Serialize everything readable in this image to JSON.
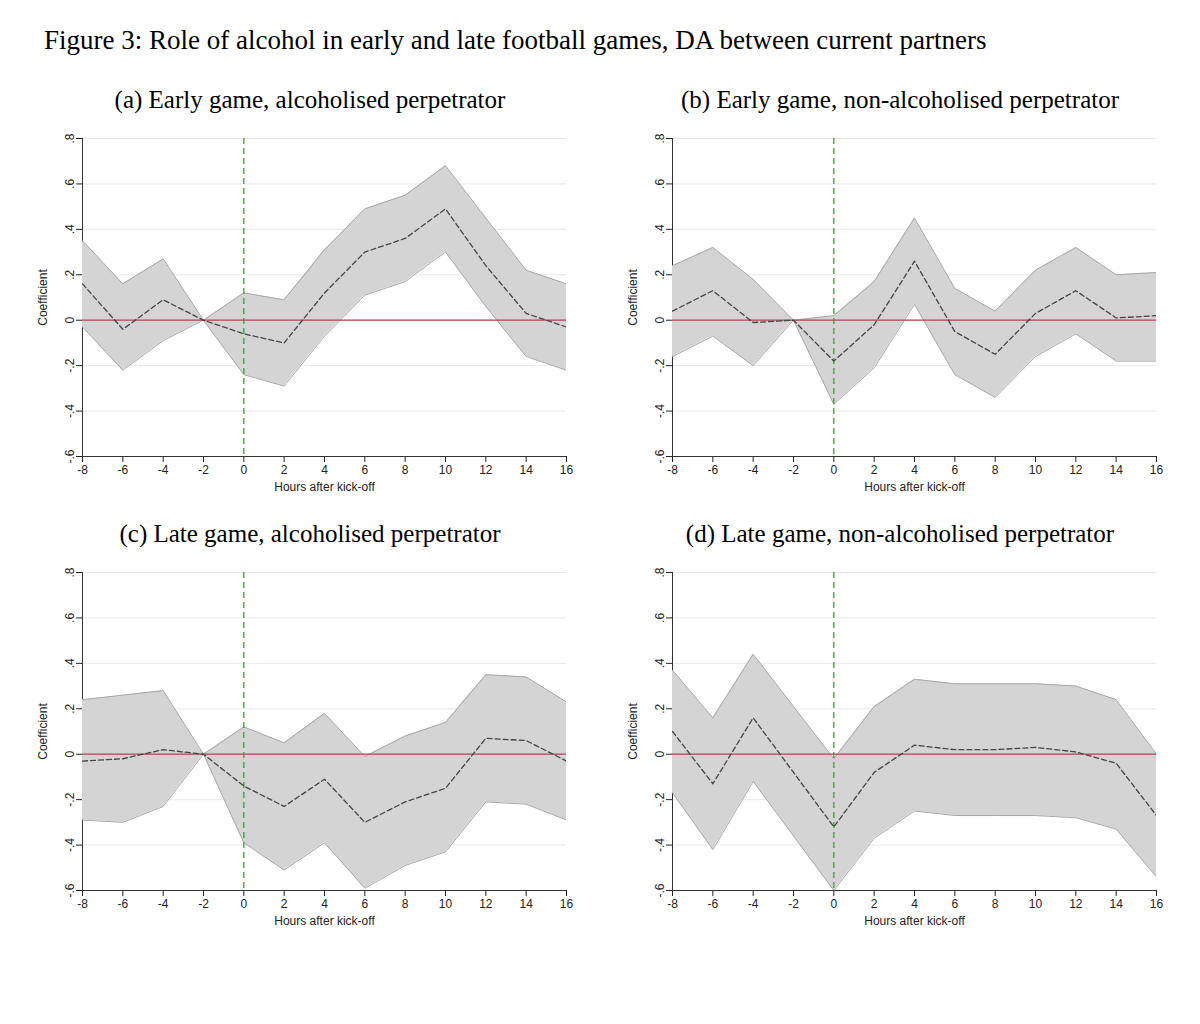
{
  "title": "Figure 3: Role of alcohol in early and late football games, DA between current partners",
  "chart_data": [
    {
      "type": "line",
      "title": "(a) Early game, alcoholised perpetrator",
      "x_label": "Hours after kick-off",
      "y_label": "Coefficient",
      "x": [
        -8,
        -6,
        -4,
        -2,
        0,
        2,
        4,
        6,
        8,
        10,
        12,
        14,
        16
      ],
      "series": [
        {
          "color": "#444444",
          "line_style": "dashed",
          "values": [
            0.16,
            -0.04,
            0.09,
            0,
            -0.06,
            -0.1,
            0.12,
            0.3,
            0.36,
            0.49,
            0.24,
            0.03,
            -0.03
          ],
          "ci_lower": [
            -0.03,
            -0.22,
            -0.09,
            0,
            -0.24,
            -0.29,
            -0.07,
            0.11,
            0.17,
            0.3,
            0.06,
            -0.16,
            -0.22
          ],
          "ci_upper": [
            0.35,
            0.16,
            0.27,
            0,
            0.12,
            0.09,
            0.31,
            0.49,
            0.55,
            0.68,
            0.45,
            0.22,
            0.16
          ]
        }
      ],
      "reference_lines": {
        "x": 0,
        "y": 0
      },
      "xlim": [
        -8,
        16
      ],
      "xticks": [
        -8,
        -6,
        -4,
        -2,
        0,
        2,
        4,
        6,
        8,
        10,
        12,
        14,
        16
      ],
      "ylim": [
        -0.6,
        0.8
      ],
      "yticks": [
        {
          "value": -0.6,
          "label": "-.6"
        },
        {
          "value": -0.4,
          "label": "-.4"
        },
        {
          "value": -0.2,
          "label": "-.2"
        },
        0,
        {
          "value": 0.2,
          "label": ".2"
        },
        {
          "value": 0.4,
          "label": ".4"
        },
        {
          "value": 0.6,
          "label": ".6"
        },
        {
          "value": 0.8,
          "label": ".8"
        }
      ],
      "grid": true
    },
    {
      "type": "line",
      "title": "(b) Early game, non-alcoholised perpetrator",
      "x_label": "Hours after kick-off",
      "y_label": "Coefficient",
      "x": [
        -8,
        -6,
        -4,
        -2,
        0,
        2,
        4,
        6,
        8,
        10,
        12,
        14,
        16
      ],
      "series": [
        {
          "color": "#444444",
          "line_style": "dashed",
          "values": [
            0.04,
            0.13,
            -0.01,
            0,
            -0.18,
            -0.02,
            0.26,
            -0.05,
            -0.15,
            0.03,
            0.13,
            0.01,
            0.02
          ],
          "ci_lower": [
            -0.16,
            -0.07,
            -0.2,
            0,
            -0.37,
            -0.21,
            0.07,
            -0.24,
            -0.34,
            -0.16,
            -0.06,
            -0.18,
            -0.18
          ],
          "ci_upper": [
            0.24,
            0.32,
            0.18,
            0,
            0.02,
            0.17,
            0.45,
            0.14,
            0.04,
            0.22,
            0.32,
            0.2,
            0.21
          ]
        }
      ],
      "reference_lines": {
        "x": 0,
        "y": 0
      },
      "xlim": [
        -8,
        16
      ],
      "xticks": [
        -8,
        -6,
        -4,
        -2,
        0,
        2,
        4,
        6,
        8,
        10,
        12,
        14,
        16
      ],
      "ylim": [
        -0.6,
        0.8
      ],
      "yticks": [
        {
          "value": -0.6,
          "label": "-.6"
        },
        {
          "value": -0.4,
          "label": "-.4"
        },
        {
          "value": -0.2,
          "label": "-.2"
        },
        0,
        {
          "value": 0.2,
          "label": ".2"
        },
        {
          "value": 0.4,
          "label": ".4"
        },
        {
          "value": 0.6,
          "label": ".6"
        },
        {
          "value": 0.8,
          "label": ".8"
        }
      ],
      "grid": true
    },
    {
      "type": "line",
      "title": "(c) Late game, alcoholised perpetrator",
      "x_label": "Hours after kick-off",
      "y_label": "Coefficient",
      "x": [
        -8,
        -6,
        -4,
        -2,
        0,
        2,
        4,
        6,
        8,
        10,
        12,
        14,
        16
      ],
      "series": [
        {
          "color": "#444444",
          "line_style": "dashed",
          "values": [
            -0.03,
            -0.02,
            0.02,
            0,
            -0.14,
            -0.23,
            -0.11,
            -0.3,
            -0.21,
            -0.15,
            0.07,
            0.06,
            -0.03
          ],
          "ci_lower": [
            -0.29,
            -0.3,
            -0.23,
            0,
            -0.39,
            -0.51,
            -0.39,
            -0.59,
            -0.49,
            -0.43,
            -0.21,
            -0.22,
            -0.29
          ],
          "ci_upper": [
            0.24,
            0.26,
            0.28,
            0,
            0.12,
            0.05,
            0.18,
            -0.01,
            0.08,
            0.14,
            0.35,
            0.34,
            0.23
          ]
        }
      ],
      "reference_lines": {
        "x": 0,
        "y": 0
      },
      "xlim": [
        -8,
        16
      ],
      "xticks": [
        -8,
        -6,
        -4,
        -2,
        0,
        2,
        4,
        6,
        8,
        10,
        12,
        14,
        16
      ],
      "ylim": [
        -0.6,
        0.8
      ],
      "yticks": [
        {
          "value": -0.6,
          "label": "-.6"
        },
        {
          "value": -0.4,
          "label": "-.4"
        },
        {
          "value": -0.2,
          "label": "-.2"
        },
        0,
        {
          "value": 0.2,
          "label": ".2"
        },
        {
          "value": 0.4,
          "label": ".4"
        },
        {
          "value": 0.6,
          "label": ".6"
        },
        {
          "value": 0.8,
          "label": ".8"
        }
      ],
      "grid": true
    },
    {
      "type": "line",
      "title": "(d) Late game, non-alcoholised perpetrator",
      "x_label": "Hours after kick-off",
      "y_label": "Coefficient",
      "x": [
        -8,
        -6,
        -4,
        0,
        2,
        4,
        6,
        8,
        10,
        12,
        14,
        16
      ],
      "series": [
        {
          "color": "#444444",
          "line_style": "dashed",
          "values": [
            0.1,
            -0.13,
            0.16,
            -0.32,
            -0.08,
            0.04,
            0.02,
            0.02,
            0.03,
            0.01,
            -0.04,
            -0.27
          ],
          "ci_lower": [
            -0.17,
            -0.42,
            -0.12,
            -0.6,
            -0.37,
            -0.25,
            -0.27,
            -0.27,
            -0.27,
            -0.28,
            -0.33,
            -0.54
          ],
          "ci_upper": [
            0.37,
            0.16,
            0.44,
            -0.02,
            0.21,
            0.33,
            0.31,
            0.31,
            0.31,
            0.3,
            0.24,
            0.0
          ]
        }
      ],
      "reference_lines": {
        "x": 0,
        "y": 0
      },
      "xlim": [
        -8,
        16
      ],
      "xticks": [
        -8,
        -6,
        -4,
        -2,
        0,
        2,
        4,
        6,
        8,
        10,
        12,
        14,
        16
      ],
      "ylim": [
        -0.6,
        0.8
      ],
      "yticks": [
        {
          "value": -0.6,
          "label": "-.6"
        },
        {
          "value": -0.4,
          "label": "-.4"
        },
        {
          "value": -0.2,
          "label": "-.2"
        },
        0,
        {
          "value": 0.2,
          "label": ".2"
        },
        {
          "value": 0.4,
          "label": ".4"
        },
        {
          "value": 0.6,
          "label": ".6"
        },
        {
          "value": 0.8,
          "label": ".8"
        }
      ],
      "grid": true
    }
  ]
}
